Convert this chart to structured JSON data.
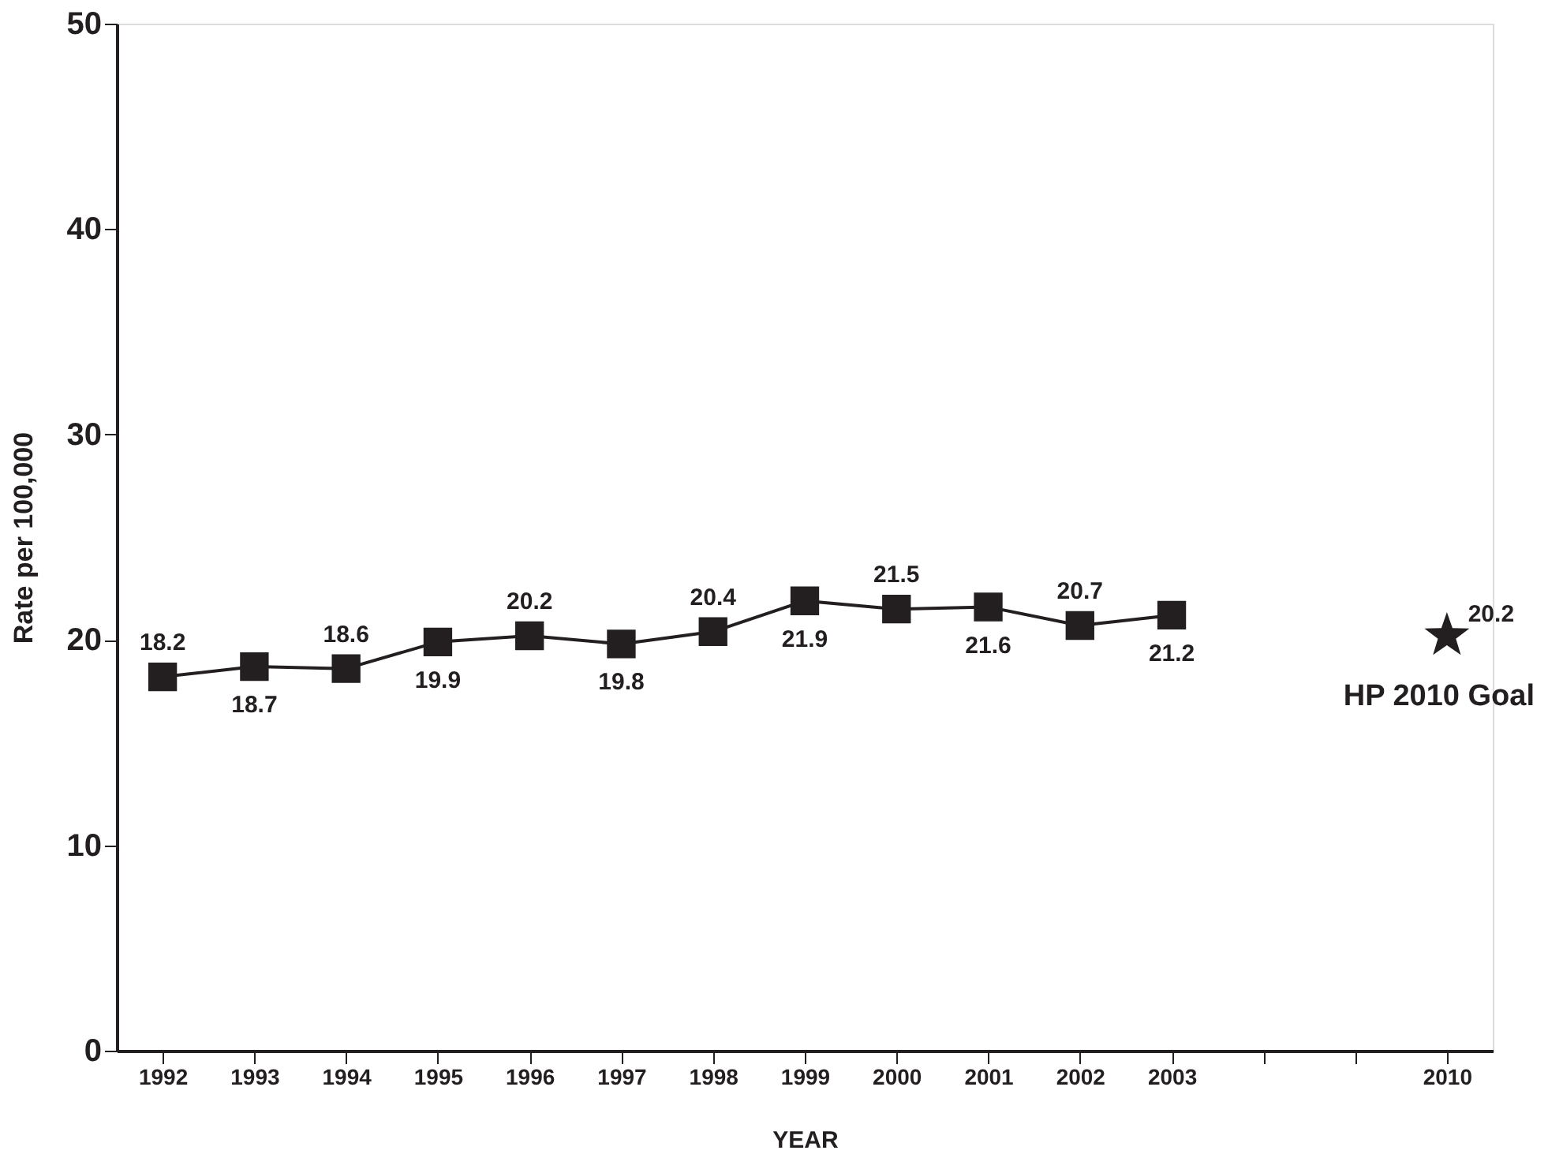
{
  "chart_data": {
    "type": "line",
    "xlabel": "YEAR",
    "ylabel": "Rate per 100,000",
    "categories": [
      "1992",
      "1993",
      "1994",
      "1995",
      "1996",
      "1997",
      "1998",
      "1999",
      "2000",
      "2001",
      "2002",
      "2003",
      null,
      null,
      "2010"
    ],
    "series": [
      {
        "color": "#231f20",
        "values": [
          18.2,
          18.7,
          18.6,
          19.9,
          20.2,
          19.8,
          20.4,
          21.9,
          21.5,
          21.6,
          20.7,
          21.2,
          null,
          null,
          null
        ],
        "marker": "square"
      },
      {
        "type": "scatter",
        "name": "HP 2010 Goal",
        "color": "#231f20",
        "values": [
          null,
          null,
          null,
          null,
          null,
          null,
          null,
          null,
          null,
          null,
          null,
          null,
          null,
          null,
          20.2
        ],
        "marker": "star"
      }
    ],
    "ylim": [
      0,
      50
    ],
    "yticks": [
      0,
      10,
      20,
      30,
      40,
      50
    ],
    "grid": false,
    "data_labels": true
  }
}
